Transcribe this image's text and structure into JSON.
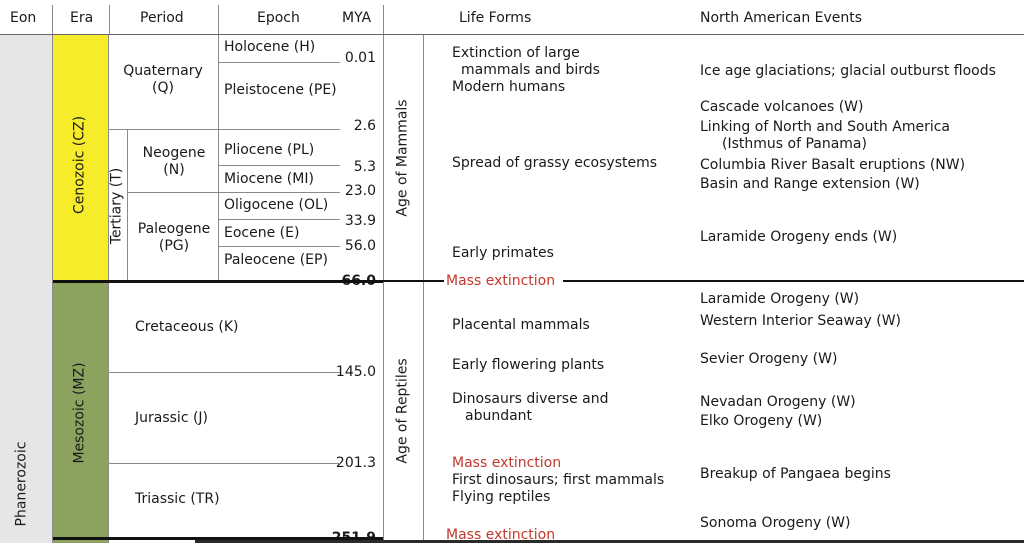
{
  "headers": {
    "eon": "Eon",
    "era": "Era",
    "period": "Period",
    "epoch": "Epoch",
    "mya": "MYA",
    "life_forms": "Life Forms",
    "na_events": "North American Events"
  },
  "eon": "Phanerozoic",
  "eras": {
    "cenozoic": "Cenozoic (CZ)",
    "mesozoic": "Mesozoic (MZ)"
  },
  "periods": {
    "quaternary": [
      "Quaternary",
      "(Q)"
    ],
    "tertiary": "Tertiary (T)",
    "neogene": [
      "Neogene",
      "(N)"
    ],
    "paleogene": [
      "Paleogene",
      "(PG)"
    ],
    "cretaceous": "Cretaceous (K)",
    "jurassic": "Jurassic (J)",
    "triassic": "Triassic (TR)"
  },
  "epochs": {
    "holocene": "Holocene (H)",
    "pleistocene": "Pleistocene (PE)",
    "pliocene": "Pliocene (PL)",
    "miocene": "Miocene (MI)",
    "oligocene": "Oligocene (OL)",
    "eocene": "Eocene (E)",
    "paleocene": "Paleocene (EP)"
  },
  "mya": {
    "holocene_end": "0.01",
    "pleistocene_end": "2.6",
    "pliocene_end": "5.3",
    "miocene_end": "23.0",
    "oligocene_end": "33.9",
    "eocene_end": "56.0",
    "cenozoic_start": "66.0",
    "cretaceous_start": "145.0",
    "jurassic_start": "201.3",
    "triassic_start": "251.9"
  },
  "ages": {
    "mammals": "Age of Mammals",
    "reptiles": "Age of Reptiles"
  },
  "life_forms": {
    "extinction_large": [
      "Extinction of large",
      "mammals and birds"
    ],
    "modern_humans": "Modern humans",
    "grassy": "Spread of grassy ecosystems",
    "early_primates": "Early primates",
    "mass_extinction": "Mass extinction",
    "placental": "Placental mammals",
    "flowering": "Early flowering plants",
    "dinosaurs": [
      "Dinosaurs diverse and",
      "abundant"
    ],
    "first_dinos": "First dinosaurs; first mammals",
    "flying": "Flying reptiles"
  },
  "na_events": {
    "ice_age": "Ice age glaciations; glacial outburst floods",
    "cascade": "Cascade volcanoes (W)",
    "linking": [
      "Linking of North and South America",
      "(Isthmus of Panama)"
    ],
    "columbia": "Columbia River Basalt eruptions (NW)",
    "basin": "Basin and Range extension (W)",
    "laramide_ends": "Laramide Orogeny ends (W)",
    "laramide": "Laramide Orogeny (W)",
    "seaway": "Western Interior Seaway (W)",
    "sevier": "Sevier Orogeny (W)",
    "nevadan": "Nevadan Orogeny (W)",
    "elko": "Elko Orogeny (W)",
    "pangaea": "Breakup of Pangaea begins",
    "sonoma": "Sonoma Orogeny (W)"
  },
  "colors": {
    "cenozoic": "#f7ec2a",
    "mesozoic": "#8ba35f",
    "eon": "#e6e6e6",
    "mass_extinction": "#c0392b"
  }
}
